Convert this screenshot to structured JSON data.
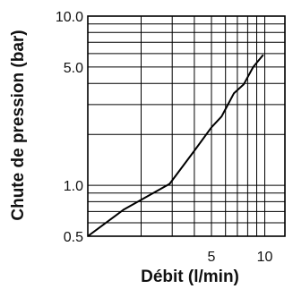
{
  "chart_data": {
    "type": "line",
    "xlabel": "Débit (l/min)",
    "ylabel": "Chute de pression (bar)",
    "x_scale": "log",
    "y_scale": "log",
    "xlim": [
      1,
      13
    ],
    "ylim": [
      0.5,
      10
    ],
    "grid": true,
    "x_ticks": [
      {
        "value": 5,
        "label": "5"
      },
      {
        "value": 10,
        "label": "10"
      }
    ],
    "y_ticks": [
      {
        "value": 0.5,
        "label": "0.5"
      },
      {
        "value": 1,
        "label": "1.0"
      },
      {
        "value": 5,
        "label": "5.0"
      },
      {
        "value": 10,
        "label": "10.0"
      }
    ],
    "x_gridlines": [
      2,
      3,
      4,
      5,
      6,
      7,
      8,
      9,
      10
    ],
    "y_gridlines": [
      0.6,
      0.7,
      0.8,
      0.9,
      1,
      2,
      3,
      4,
      5,
      6,
      7,
      8,
      9
    ],
    "series": [
      {
        "color": "#000000",
        "points": [
          [
            1.0,
            0.5
          ],
          [
            1.6,
            0.72
          ],
          [
            2.9,
            1.02
          ],
          [
            4.0,
            1.6
          ],
          [
            5.0,
            2.2
          ],
          [
            5.7,
            2.55
          ],
          [
            6.7,
            3.5
          ],
          [
            7.6,
            3.95
          ],
          [
            8.6,
            5.0
          ],
          [
            9.8,
            5.9
          ]
        ]
      }
    ]
  }
}
